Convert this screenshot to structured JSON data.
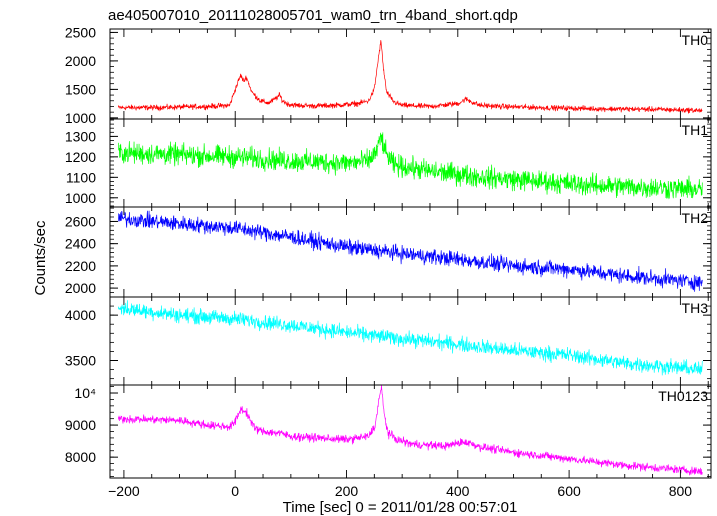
{
  "chart_data": {
    "type": "line",
    "title": "ae405007010_20111028005701_wam0_trn_4band_short.qdp",
    "xlabel": "Time [sec] 0 = 2011/01/28 00:57:01",
    "ylabel": "Counts/sec",
    "xlim": [
      -225,
      855
    ],
    "x_ticks": [
      -200,
      0,
      200,
      400,
      600,
      800
    ],
    "x_tick_labels": [
      "−200",
      "0",
      "200",
      "400",
      "600",
      "800"
    ],
    "grid": false,
    "panels": [
      {
        "name": "TH0",
        "color": "#ff0000",
        "ylim": [
          980,
          2560
        ],
        "y_ticks": [
          1000,
          1500,
          2000,
          2500
        ],
        "y_tick_labels": [
          "1000",
          "1500",
          "2000",
          "2500"
        ],
        "noise": 40,
        "x": [
          -210,
          -150,
          -100,
          -50,
          -10,
          0,
          10,
          15,
          20,
          30,
          45,
          60,
          70,
          80,
          85,
          95,
          110,
          140,
          180,
          220,
          240,
          250,
          258,
          262,
          266,
          272,
          285,
          300,
          350,
          400,
          415,
          425,
          440,
          480,
          550,
          650,
          750,
          840
        ],
        "y": [
          1180,
          1180,
          1190,
          1200,
          1220,
          1500,
          1750,
          1640,
          1720,
          1450,
          1300,
          1260,
          1320,
          1400,
          1300,
          1240,
          1220,
          1210,
          1220,
          1250,
          1300,
          1500,
          2100,
          2350,
          1900,
          1450,
          1280,
          1220,
          1200,
          1250,
          1330,
          1280,
          1220,
          1200,
          1180,
          1160,
          1150,
          1130
        ]
      },
      {
        "name": "TH1",
        "color": "#00ff00",
        "ylim": [
          955,
          1385
        ],
        "y_ticks": [
          1000,
          1100,
          1200,
          1300
        ],
        "y_tick_labels": [
          "1000",
          "1100",
          "1200",
          "1300"
        ],
        "noise": 45,
        "x": [
          -210,
          -100,
          0,
          100,
          200,
          240,
          255,
          262,
          270,
          285,
          350,
          450,
          550,
          650,
          750,
          840
        ],
        "y": [
          1220,
          1210,
          1200,
          1180,
          1170,
          1180,
          1230,
          1300,
          1220,
          1160,
          1130,
          1100,
          1080,
          1060,
          1050,
          1040
        ]
      },
      {
        "name": "TH2",
        "color": "#0000ff",
        "ylim": [
          1920,
          2730
        ],
        "y_ticks": [
          2000,
          2200,
          2400,
          2600
        ],
        "y_tick_labels": [
          "2000",
          "2200",
          "2400",
          "2600"
        ],
        "noise": 60,
        "x": [
          -210,
          -100,
          0,
          100,
          200,
          300,
          400,
          500,
          600,
          700,
          840
        ],
        "y": [
          2630,
          2580,
          2540,
          2460,
          2370,
          2310,
          2260,
          2200,
          2170,
          2110,
          2050
        ]
      },
      {
        "name": "TH3",
        "color": "#00ffff",
        "ylim": [
          3230,
          4200
        ],
        "y_ticks": [
          3500,
          4000
        ],
        "y_tick_labels": [
          "3500",
          "4000"
        ],
        "noise": 70,
        "x": [
          -210,
          -100,
          0,
          100,
          200,
          300,
          400,
          500,
          600,
          700,
          840
        ],
        "y": [
          4080,
          4000,
          3960,
          3890,
          3810,
          3740,
          3680,
          3610,
          3560,
          3470,
          3400
        ]
      },
      {
        "name": "TH0123",
        "color": "#ff00ff",
        "ylim": [
          7350,
          10250
        ],
        "y_ticks": [
          8000,
          9000,
          10000
        ],
        "y_tick_labels": [
          "8000",
          "9000",
          "10⁴"
        ],
        "noise": 110,
        "x": [
          -210,
          -100,
          -50,
          -10,
          0,
          10,
          20,
          35,
          50,
          80,
          100,
          150,
          200,
          240,
          252,
          258,
          263,
          268,
          275,
          290,
          320,
          380,
          410,
          425,
          440,
          500,
          600,
          700,
          840
        ],
        "y": [
          9200,
          9150,
          9000,
          8950,
          9100,
          9500,
          9400,
          8900,
          8800,
          8750,
          8650,
          8600,
          8550,
          8650,
          9000,
          9800,
          10150,
          9300,
          8750,
          8550,
          8400,
          8350,
          8480,
          8420,
          8320,
          8150,
          7950,
          7750,
          7550
        ]
      }
    ]
  }
}
